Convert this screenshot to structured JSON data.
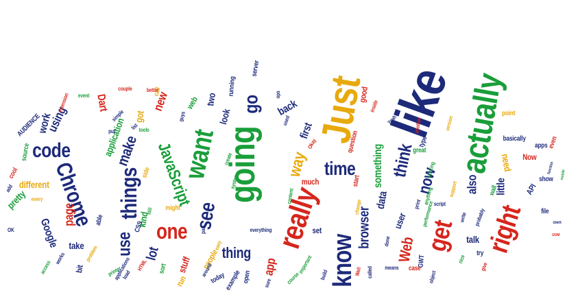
{
  "colors": {
    "navy": "#1d2a7a",
    "green": "#1a9e3a",
    "red": "#d6261d",
    "gold": "#e8a90e",
    "background": "#ffffff"
  },
  "words": [
    {
      "text": "like",
      "color": "navy"
    },
    {
      "text": "Just",
      "color": "gold"
    },
    {
      "text": "actually",
      "color": "green"
    },
    {
      "text": "going",
      "color": "green"
    },
    {
      "text": "really",
      "color": "red"
    },
    {
      "text": "want",
      "color": "green"
    },
    {
      "text": "know",
      "color": "navy"
    },
    {
      "text": "right",
      "color": "red"
    },
    {
      "text": "get",
      "color": "red"
    },
    {
      "text": "go",
      "color": "navy"
    },
    {
      "text": "Chrome",
      "color": "navy"
    },
    {
      "text": "code",
      "color": "navy"
    },
    {
      "text": "things",
      "color": "navy"
    },
    {
      "text": "one",
      "color": "red"
    },
    {
      "text": "see",
      "color": "navy"
    },
    {
      "text": "time",
      "color": "navy"
    },
    {
      "text": "way",
      "color": "gold"
    },
    {
      "text": "JavaScript",
      "color": "green"
    },
    {
      "text": "use",
      "color": "navy"
    },
    {
      "text": "now",
      "color": "navy"
    },
    {
      "text": "think",
      "color": "navy"
    },
    {
      "text": "browser",
      "color": "navy"
    },
    {
      "text": "something",
      "color": "green"
    },
    {
      "text": "thing",
      "color": "navy"
    },
    {
      "text": "Web",
      "color": "red"
    },
    {
      "text": "app",
      "color": "red"
    },
    {
      "text": "make",
      "color": "navy"
    },
    {
      "text": "page",
      "color": "red"
    },
    {
      "text": "application",
      "color": "green"
    },
    {
      "text": "using",
      "color": "navy"
    },
    {
      "text": "lot",
      "color": "navy"
    },
    {
      "text": "little",
      "color": "navy"
    },
    {
      "text": "also",
      "color": "navy"
    },
    {
      "text": "data",
      "color": "navy"
    },
    {
      "text": "back",
      "color": "navy"
    },
    {
      "text": "first",
      "color": "navy"
    },
    {
      "text": "new",
      "color": "red"
    },
    {
      "text": "Dart",
      "color": "red"
    },
    {
      "text": "work",
      "color": "navy"
    },
    {
      "text": "different",
      "color": "gold"
    },
    {
      "text": "pretty",
      "color": "green"
    },
    {
      "text": "Google",
      "color": "navy"
    },
    {
      "text": "look",
      "color": "navy"
    },
    {
      "text": "two",
      "color": "navy"
    },
    {
      "text": "web",
      "color": "green"
    },
    {
      "text": "got",
      "color": "gold"
    },
    {
      "text": "kind",
      "color": "green"
    },
    {
      "text": "stuff",
      "color": "red"
    },
    {
      "text": "take",
      "color": "navy"
    },
    {
      "text": "need",
      "color": "gold"
    },
    {
      "text": "talk",
      "color": "navy"
    },
    {
      "text": "user",
      "color": "navy"
    },
    {
      "text": "Now",
      "color": "red"
    },
    {
      "text": "API",
      "color": "navy"
    },
    {
      "text": "file",
      "color": "navy"
    },
    {
      "text": "show",
      "color": "navy"
    },
    {
      "text": "basically",
      "color": "navy"
    },
    {
      "text": "apps",
      "color": "navy"
    },
    {
      "text": "even",
      "color": "red"
    },
    {
      "text": "point",
      "color": "gold"
    },
    {
      "text": "wall",
      "color": "green"
    },
    {
      "text": "try",
      "color": "navy"
    },
    {
      "text": "people",
      "color": "gold"
    },
    {
      "text": "start",
      "color": "red"
    },
    {
      "text": "much",
      "color": "red"
    },
    {
      "text": "set",
      "color": "navy"
    },
    {
      "text": "good",
      "color": "red"
    },
    {
      "text": "great",
      "color": "green"
    },
    {
      "text": "type",
      "color": "navy"
    },
    {
      "text": "run",
      "color": "gold"
    },
    {
      "text": "sort",
      "color": "green"
    },
    {
      "text": "CSS",
      "color": "navy"
    },
    {
      "text": "bit",
      "color": "navy"
    },
    {
      "text": "able",
      "color": "navy"
    },
    {
      "text": "side",
      "color": "gold"
    },
    {
      "text": "might",
      "color": "gold"
    },
    {
      "text": "call",
      "color": "gold"
    },
    {
      "text": "AUDIENCE",
      "color": "navy"
    },
    {
      "text": "source",
      "color": "green"
    },
    {
      "text": "cool",
      "color": "red"
    },
    {
      "text": "today",
      "color": "navy"
    },
    {
      "text": "example",
      "color": "navy"
    },
    {
      "text": "open",
      "color": "navy"
    },
    {
      "text": "everything",
      "color": "navy"
    },
    {
      "text": "server",
      "color": "navy"
    },
    {
      "text": "running",
      "color": "navy"
    },
    {
      "text": "question",
      "color": "red"
    },
    {
      "text": "working",
      "color": "green"
    },
    {
      "text": "another",
      "color": "red"
    },
    {
      "text": "version",
      "color": "gold"
    },
    {
      "text": "case",
      "color": "red"
    },
    {
      "text": "means",
      "color": "navy"
    },
    {
      "text": "nice",
      "color": "green"
    },
    {
      "text": "give",
      "color": "red"
    },
    {
      "text": "GWT",
      "color": "navy"
    },
    {
      "text": "called",
      "color": "navy"
    },
    {
      "text": "build",
      "color": "navy"
    },
    {
      "text": "system",
      "color": "green"
    },
    {
      "text": "content",
      "color": "green"
    },
    {
      "text": "change",
      "color": "gold"
    },
    {
      "text": "probably",
      "color": "navy"
    },
    {
      "text": "performance",
      "color": "green"
    },
    {
      "text": "function",
      "color": "navy"
    },
    {
      "text": "mobile",
      "color": "green"
    },
    {
      "text": "client",
      "color": "navy"
    },
    {
      "text": "DOM",
      "color": "red"
    },
    {
      "text": "support",
      "color": "gold"
    },
    {
      "text": "done",
      "color": "navy"
    },
    {
      "text": "anything",
      "color": "green"
    },
    {
      "text": "write",
      "color": "navy"
    },
    {
      "text": "script",
      "color": "navy"
    },
    {
      "text": "print",
      "color": "navy"
    },
    {
      "text": "object",
      "color": "navy"
    },
    {
      "text": "course",
      "color": "green"
    },
    {
      "text": "important",
      "color": "green"
    },
    {
      "text": "sure",
      "color": "navy"
    },
    {
      "text": "around",
      "color": "navy"
    },
    {
      "text": "easy",
      "color": "gold"
    },
    {
      "text": "OK",
      "color": "navy"
    },
    {
      "text": "access",
      "color": "green"
    },
    {
      "text": "every",
      "color": "gold"
    },
    {
      "text": "add",
      "color": "navy"
    },
    {
      "text": "works",
      "color": "navy"
    },
    {
      "text": "problem",
      "color": "gold"
    },
    {
      "text": "printer",
      "color": "green"
    },
    {
      "text": "applications",
      "color": "navy"
    },
    {
      "text": "load",
      "color": "navy"
    },
    {
      "text": "HTML",
      "color": "red"
    },
    {
      "text": "still",
      "color": "green"
    },
    {
      "text": "tools",
      "color": "green"
    },
    {
      "text": "list",
      "color": "navy"
    },
    {
      "text": "better",
      "color": "red"
    },
    {
      "text": "couple",
      "color": "red"
    },
    {
      "text": "event",
      "color": "green"
    },
    {
      "text": "put",
      "color": "navy"
    },
    {
      "text": "simple",
      "color": "navy"
    },
    {
      "text": "extension",
      "color": "red"
    },
    {
      "text": "Yeah",
      "color": "navy"
    },
    {
      "text": "Okay",
      "color": "red"
    },
    {
      "text": "used",
      "color": "navy"
    },
    {
      "text": "inside",
      "color": "red"
    },
    {
      "text": "create",
      "color": "green"
    },
    {
      "text": "part",
      "color": "navy"
    },
    {
      "text": "guys",
      "color": "navy"
    },
    {
      "text": "Well",
      "color": "red"
    },
    {
      "text": "ops",
      "color": "navy"
    }
  ]
}
